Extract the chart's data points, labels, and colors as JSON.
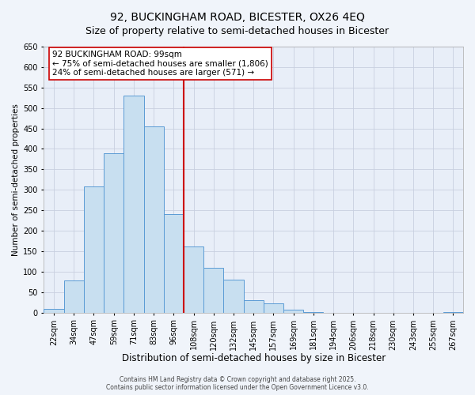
{
  "title": "92, BUCKINGHAM ROAD, BICESTER, OX26 4EQ",
  "subtitle": "Size of property relative to semi-detached houses in Bicester",
  "xlabel": "Distribution of semi-detached houses by size in Bicester",
  "ylabel": "Number of semi-detached properties",
  "bin_labels": [
    "22sqm",
    "34sqm",
    "47sqm",
    "59sqm",
    "71sqm",
    "83sqm",
    "96sqm",
    "108sqm",
    "120sqm",
    "132sqm",
    "145sqm",
    "157sqm",
    "169sqm",
    "181sqm",
    "194sqm",
    "206sqm",
    "218sqm",
    "230sqm",
    "243sqm",
    "255sqm",
    "267sqm"
  ],
  "bar_values": [
    10,
    78,
    308,
    390,
    530,
    455,
    240,
    162,
    110,
    80,
    30,
    22,
    8,
    1,
    0,
    0,
    0,
    0,
    0,
    0,
    2
  ],
  "bar_color": "#c8dff0",
  "bar_edge_color": "#5b9bd5",
  "property_line_index": 6.5,
  "property_line_color": "#cc0000",
  "annotation_line1": "92 BUCKINGHAM ROAD: 99sqm",
  "annotation_line2": "← 75% of semi-detached houses are smaller (1,806)",
  "annotation_line3": "24% of semi-detached houses are larger (571) →",
  "ylim": [
    0,
    650
  ],
  "yticks": [
    0,
    50,
    100,
    150,
    200,
    250,
    300,
    350,
    400,
    450,
    500,
    550,
    600,
    650
  ],
  "footer_line1": "Contains HM Land Registry data © Crown copyright and database right 2025.",
  "footer_line2": "Contains public sector information licensed under the Open Government Licence v3.0.",
  "background_color": "#f0f4fa",
  "plot_bg_color": "#e8eef8",
  "grid_color": "#c8cfe0",
  "title_fontsize": 10,
  "xlabel_fontsize": 8.5,
  "ylabel_fontsize": 7.5,
  "tick_fontsize": 7,
  "annotation_fontsize": 7.5,
  "footer_fontsize": 5.5
}
